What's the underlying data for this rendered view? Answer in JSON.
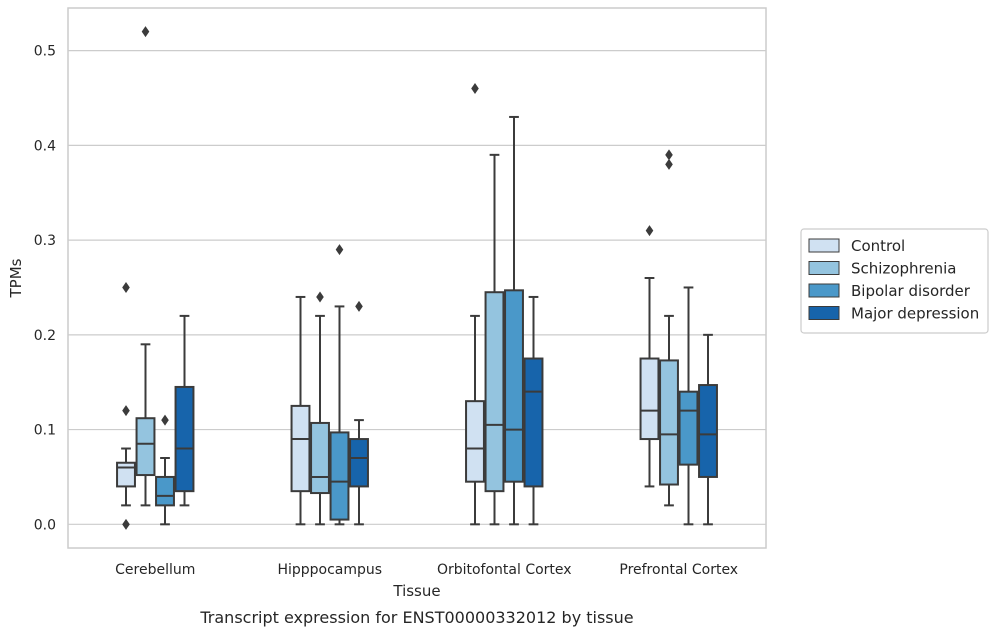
{
  "chart_data": {
    "type": "box",
    "caption": "Transcript expression for ENST00000332012 by tissue",
    "xlabel": "Tissue",
    "ylabel": "TPMs",
    "ylim": [
      -0.025,
      0.545
    ],
    "yticks": [
      0.0,
      0.1,
      0.2,
      0.3,
      0.4,
      0.5
    ],
    "ytick_labels": [
      "0.0",
      "0.1",
      "0.2",
      "0.3",
      "0.4",
      "0.5"
    ],
    "grid": true,
    "legend_position": "right",
    "categories": [
      "Cerebellum",
      "Hipppocampus",
      "Orbitofontal Cortex",
      "Prefrontal Cortex"
    ],
    "series": [
      {
        "name": "Control",
        "color": "#d0e1f2",
        "boxes": [
          {
            "whislo": 0.02,
            "q1": 0.04,
            "med": 0.06,
            "q3": 0.065,
            "whishi": 0.08,
            "fliers": [
              0.0,
              0.12,
              0.25
            ]
          },
          {
            "whislo": 0.0,
            "q1": 0.035,
            "med": 0.09,
            "q3": 0.125,
            "whishi": 0.24,
            "fliers": []
          },
          {
            "whislo": 0.0,
            "q1": 0.045,
            "med": 0.08,
            "q3": 0.13,
            "whishi": 0.22,
            "fliers": [
              0.46
            ]
          },
          {
            "whislo": 0.04,
            "q1": 0.09,
            "med": 0.12,
            "q3": 0.175,
            "whishi": 0.26,
            "fliers": [
              0.31
            ]
          }
        ]
      },
      {
        "name": "Schizophrenia",
        "color": "#94c4df",
        "boxes": [
          {
            "whislo": 0.02,
            "q1": 0.052,
            "med": 0.085,
            "q3": 0.112,
            "whishi": 0.19,
            "fliers": [
              0.52
            ]
          },
          {
            "whislo": 0.0,
            "q1": 0.033,
            "med": 0.05,
            "q3": 0.107,
            "whishi": 0.22,
            "fliers": [
              0.24
            ]
          },
          {
            "whislo": 0.0,
            "q1": 0.035,
            "med": 0.105,
            "q3": 0.245,
            "whishi": 0.39,
            "fliers": []
          },
          {
            "whislo": 0.02,
            "q1": 0.042,
            "med": 0.095,
            "q3": 0.173,
            "whishi": 0.22,
            "fliers": [
              0.38,
              0.39
            ]
          }
        ]
      },
      {
        "name": "Bipolar disorder",
        "color": "#4a98c9",
        "boxes": [
          {
            "whislo": 0.0,
            "q1": 0.02,
            "med": 0.03,
            "q3": 0.05,
            "whishi": 0.07,
            "fliers": [
              0.11
            ]
          },
          {
            "whislo": 0.0,
            "q1": 0.005,
            "med": 0.045,
            "q3": 0.097,
            "whishi": 0.23,
            "fliers": [
              0.29
            ]
          },
          {
            "whislo": 0.0,
            "q1": 0.045,
            "med": 0.1,
            "q3": 0.247,
            "whishi": 0.43,
            "fliers": []
          },
          {
            "whislo": 0.0,
            "q1": 0.063,
            "med": 0.12,
            "q3": 0.14,
            "whishi": 0.25,
            "fliers": []
          }
        ]
      },
      {
        "name": "Major depression",
        "color": "#1764ab",
        "boxes": [
          {
            "whislo": 0.02,
            "q1": 0.035,
            "med": 0.08,
            "q3": 0.145,
            "whishi": 0.22,
            "fliers": []
          },
          {
            "whislo": 0.0,
            "q1": 0.04,
            "med": 0.07,
            "q3": 0.09,
            "whishi": 0.11,
            "fliers": [
              0.23
            ]
          },
          {
            "whislo": 0.0,
            "q1": 0.04,
            "med": 0.14,
            "q3": 0.175,
            "whishi": 0.24,
            "fliers": []
          },
          {
            "whislo": 0.0,
            "q1": 0.05,
            "med": 0.095,
            "q3": 0.147,
            "whishi": 0.2,
            "fliers": []
          }
        ]
      }
    ],
    "colors": {
      "box_edge": "#3b3b3b",
      "grid": "#cccccc",
      "spine": "#cccccc",
      "text": "#262626"
    }
  }
}
